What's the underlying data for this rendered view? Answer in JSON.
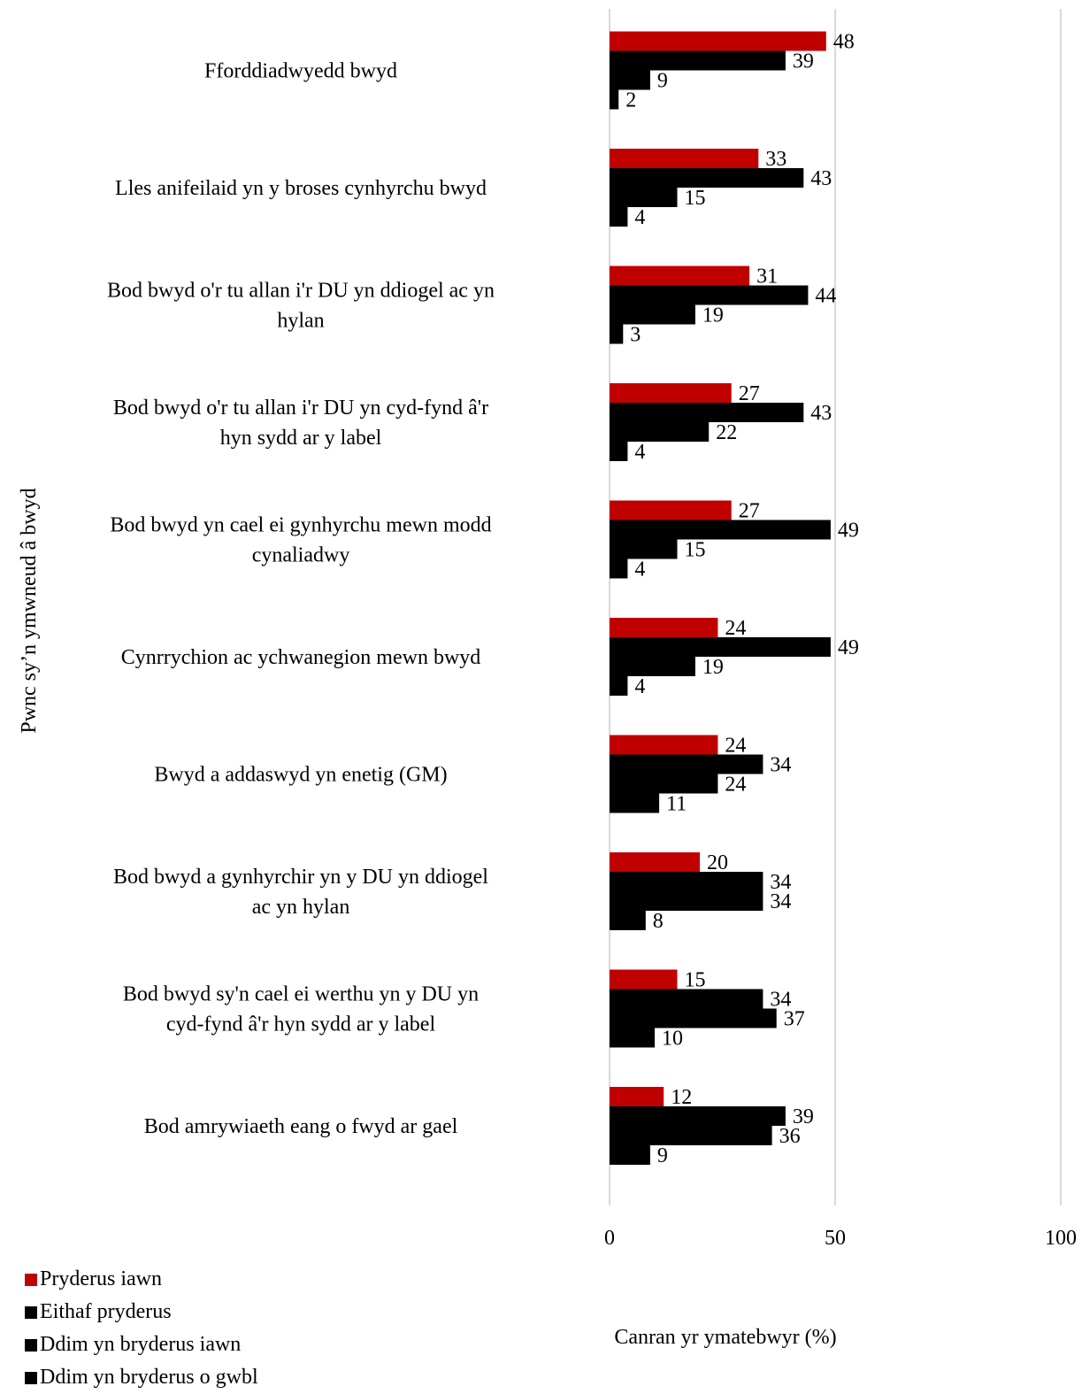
{
  "chart_data": {
    "type": "bar",
    "orientation": "horizontal",
    "categories": [
      [
        "Fforddiadwyedd bwyd"
      ],
      [
        "Lles anifeilaid yn y broses cynhyrchu bwyd"
      ],
      [
        "Bod bwyd o'r tu allan i'r DU yn ddiogel ac yn",
        "hylan"
      ],
      [
        "Bod bwyd o'r tu allan i'r DU yn cyd-fynd â'r",
        "hyn sydd ar y label"
      ],
      [
        "Bod bwyd yn cael ei gynhyrchu mewn modd",
        "cynaliadwy"
      ],
      [
        "Cynrrychion ac ychwanegion mewn bwyd"
      ],
      [
        "Bwyd a addaswyd yn enetig (GM)"
      ],
      [
        "Bod bwyd a gynhyrchir yn y DU yn ddiogel",
        "ac yn hylan"
      ],
      [
        "Bod bwyd sy'n cael ei werthu yn y DU yn",
        "cyd-fynd â'r hyn sydd ar y label"
      ],
      [
        "Bod amrywiaeth eang o fwyd ar gael"
      ]
    ],
    "series": [
      {
        "name": "Pryderus iawn",
        "color": "#c00000",
        "values": [
          48,
          33,
          31,
          27,
          27,
          24,
          24,
          20,
          15,
          12
        ]
      },
      {
        "name": "Eithaf pryderus",
        "color": "#000000",
        "values": [
          39,
          43,
          44,
          43,
          49,
          49,
          34,
          34,
          34,
          39
        ]
      },
      {
        "name": "Ddim yn bryderus iawn",
        "color": "#000000",
        "values": [
          9,
          15,
          19,
          22,
          15,
          19,
          24,
          34,
          37,
          36
        ]
      },
      {
        "name": "Ddim yn bryderus o gwbl",
        "color": "#000000",
        "values": [
          2,
          4,
          3,
          4,
          4,
          4,
          11,
          8,
          10,
          9
        ]
      }
    ],
    "xlim": [
      0,
      100
    ],
    "xticks": [
      "0",
      "50",
      "100"
    ],
    "xlabel": "Canran yr ymatebwyr (%)",
    "ylabel": "Pwnc sy’n ymwneud â bwyd",
    "grid": "vertical",
    "legend_position": "bottom-left"
  }
}
